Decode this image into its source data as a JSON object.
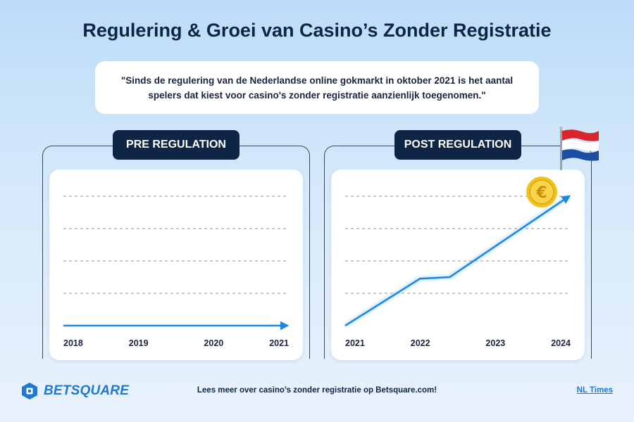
{
  "title": "Regulering & Groei van Casino’s Zonder Registratie",
  "quote": "\"Sinds de regulering van de Nederlandse online gokmarkt in oktober 2021 is het aantal spelers dat kiest voor casino's zonder registratie aanzienlijk toegenomen.\"",
  "footer": {
    "brand": "BETSQUARE",
    "text": "Lees meer over casino’s zonder registratie op Betsquare.com!",
    "source_link": "NL Times"
  },
  "colors": {
    "accent": "#1f78d1",
    "navy": "#0f2546",
    "line": "#1f86e0"
  },
  "chart_data": [
    {
      "type": "line",
      "title": "PRE REGULATION",
      "categories": [
        "2018",
        "2019",
        "2020",
        "2021"
      ],
      "x": [
        2018,
        2021
      ],
      "y": [
        0,
        0
      ],
      "ylim": [
        0,
        4
      ],
      "grid": true,
      "arrow_end": true
    },
    {
      "type": "line",
      "title": "POST REGULATION",
      "categories": [
        "2021",
        "2022",
        "2023",
        "2024"
      ],
      "x": [
        2021,
        2022,
        2022.4,
        2024
      ],
      "y": [
        0,
        1.45,
        1.5,
        4
      ],
      "ylim": [
        0,
        4
      ],
      "grid": true,
      "arrow_end": true,
      "decorations": [
        "euro-coin-icon",
        "netherlands-flag-icon"
      ]
    }
  ]
}
